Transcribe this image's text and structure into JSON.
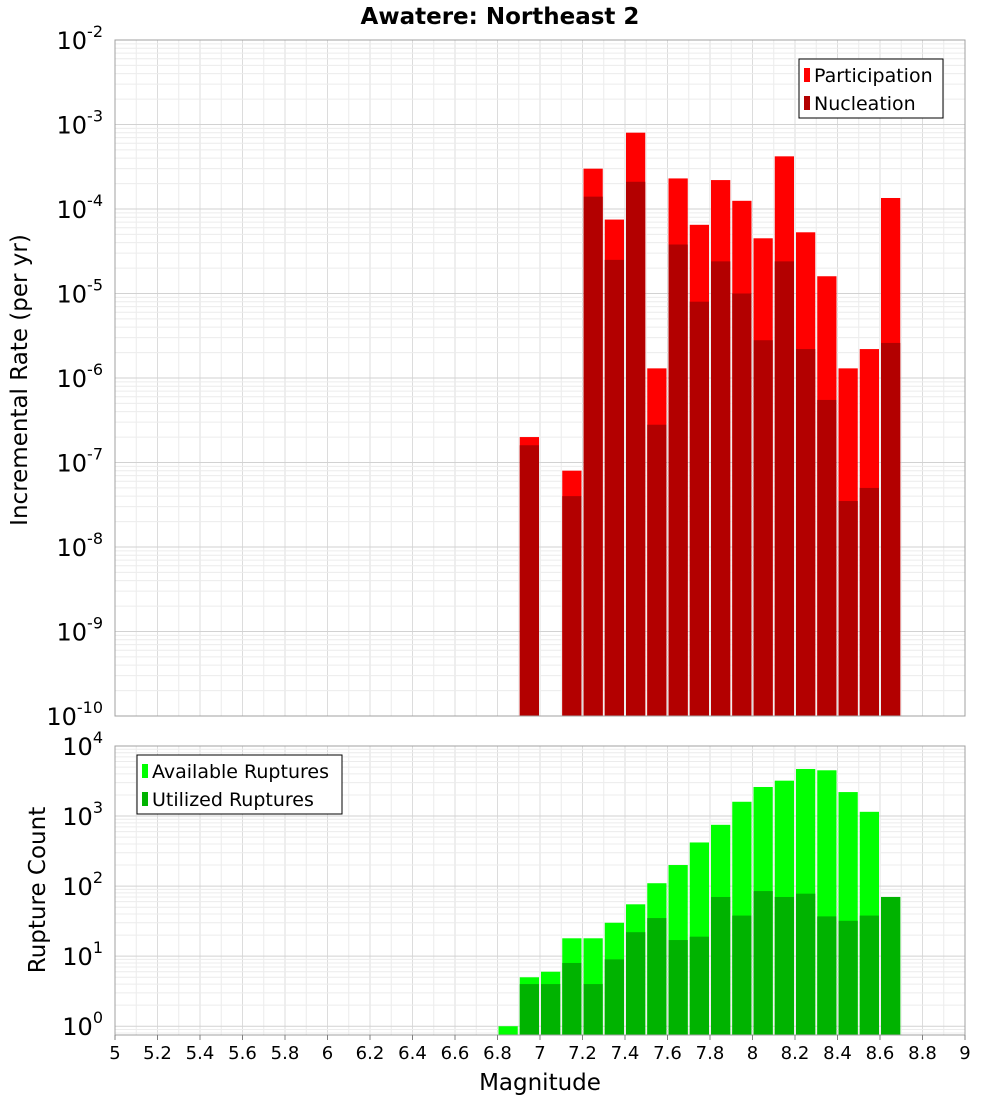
{
  "chart_data": [
    {
      "type": "bar",
      "title": "Awatere: Northeast 2",
      "ylabel": "Incremental Rate (per yr)",
      "yscale": "log",
      "ylim": [
        1e-10,
        0.01
      ],
      "xlim": [
        5,
        9
      ],
      "legend_position": "top-right",
      "ytick_labels": [
        {
          "base": "10",
          "exp": "-10"
        },
        {
          "base": "10",
          "exp": "-9"
        },
        {
          "base": "10",
          "exp": "-8"
        },
        {
          "base": "10",
          "exp": "-7"
        },
        {
          "base": "10",
          "exp": "-6"
        },
        {
          "base": "10",
          "exp": "-5"
        },
        {
          "base": "10",
          "exp": "-4"
        },
        {
          "base": "10",
          "exp": "-3"
        },
        {
          "base": "10",
          "exp": "-2"
        }
      ],
      "x": [
        6.95,
        7.15,
        7.25,
        7.35,
        7.45,
        7.55,
        7.65,
        7.75,
        7.85,
        7.95,
        8.05,
        8.15,
        8.25,
        8.35,
        8.45,
        8.55,
        8.65
      ],
      "series": [
        {
          "name": "Participation",
          "color": "#ff0000",
          "values": [
            2e-07,
            8e-08,
            0.0003,
            7.5e-05,
            0.0008,
            1.3e-06,
            0.00023,
            6.5e-05,
            0.00022,
            0.000125,
            4.5e-05,
            0.00042,
            5.3e-05,
            1.6e-05,
            1.3e-06,
            2.2e-06,
            0.000135
          ]
        },
        {
          "name": "Nucleation",
          "color": "#b30000",
          "values": [
            1.6e-07,
            4e-08,
            0.00014,
            2.5e-05,
            0.00021,
            2.8e-07,
            3.8e-05,
            8e-06,
            2.4e-05,
            1e-05,
            2.8e-06,
            2.4e-05,
            2.2e-06,
            5.5e-07,
            3.5e-08,
            5e-08,
            2.6e-06
          ]
        }
      ]
    },
    {
      "type": "bar",
      "xlabel": "Magnitude",
      "ylabel": "Rupture Count",
      "yscale": "log",
      "ylim": [
        0.75,
        10000
      ],
      "xlim": [
        5,
        9
      ],
      "legend_position": "top-left",
      "xtick_labels": [
        "5",
        "5.2",
        "5.4",
        "5.6",
        "5.8",
        "6",
        "6.2",
        "6.4",
        "6.6",
        "6.8",
        "7",
        "7.2",
        "7.4",
        "7.6",
        "7.8",
        "8",
        "8.2",
        "8.4",
        "8.6",
        "8.8",
        "9"
      ],
      "ytick_labels": [
        {
          "base": "10",
          "exp": "0"
        },
        {
          "base": "10",
          "exp": "1"
        },
        {
          "base": "10",
          "exp": "2"
        },
        {
          "base": "10",
          "exp": "3"
        },
        {
          "base": "10",
          "exp": "4"
        }
      ],
      "x": [
        6.85,
        6.95,
        7.05,
        7.15,
        7.25,
        7.35,
        7.45,
        7.55,
        7.65,
        7.75,
        7.85,
        7.95,
        8.05,
        8.15,
        8.25,
        8.35,
        8.45,
        8.55,
        8.65
      ],
      "series": [
        {
          "name": "Available Ruptures",
          "color": "#00ff00",
          "values": [
            1,
            5,
            6,
            18,
            18,
            30,
            55,
            110,
            200,
            420,
            750,
            1600,
            2600,
            3200,
            4700,
            4500,
            2200,
            1150,
            70
          ]
        },
        {
          "name": "Utilized Ruptures",
          "color": "#00b300",
          "values": [
            0,
            4,
            4,
            8,
            4,
            9,
            22,
            35,
            17,
            19,
            70,
            38,
            85,
            70,
            78,
            37,
            32,
            38,
            70
          ]
        }
      ]
    }
  ]
}
